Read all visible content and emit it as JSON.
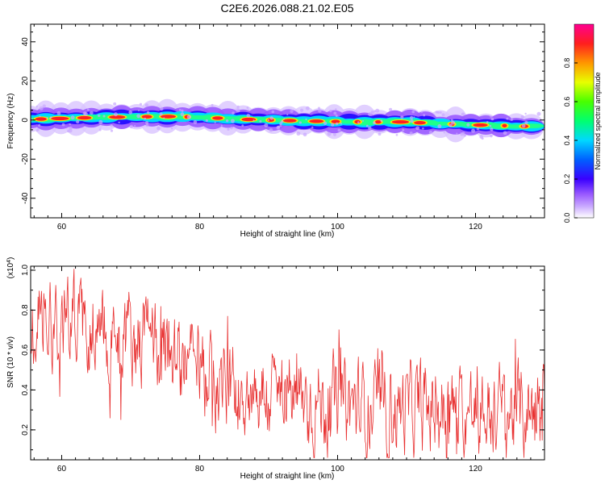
{
  "title": "C2E6.2026.088.21.02.E05",
  "chart_data": [
    {
      "type": "heatmap",
      "name": "spectrogram",
      "xlabel": "Height of straight line (km)",
      "ylabel": "Frequency (Hz)",
      "xlim": [
        55.5,
        130
      ],
      "ylim": [
        -50,
        49
      ],
      "xticks": [
        "60",
        "80",
        "100",
        "120"
      ],
      "yticks": [
        "40",
        "20",
        "0",
        "-20",
        "-40"
      ],
      "ridge": {
        "x": [
          57,
          62,
          68,
          75,
          80,
          85,
          90,
          95,
          100,
          105,
          110,
          115,
          120,
          125,
          130
        ],
        "freq_hz": [
          0.5,
          1.0,
          1.5,
          1.8,
          1.5,
          0.5,
          0.0,
          -0.5,
          -0.8,
          -1.0,
          -1.0,
          -2.0,
          -2.5,
          -3.0,
          -3.5
        ],
        "peak_amplitude": 1.0
      },
      "colorbar": {
        "label": "Normalized spectral amplitude",
        "range": [
          0,
          1
        ],
        "ticks": [
          "0.0",
          "0.2",
          "0.4",
          "0.6",
          "0.8"
        ]
      }
    },
    {
      "type": "line",
      "name": "snr",
      "xlabel": "Height of straight line (km)",
      "ylabel": "SNR (10 * v/v)",
      "yscale_label": "(x10",
      "yscale_exp": "4",
      "yscale_close": ")",
      "xlim": [
        55.5,
        130
      ],
      "ylim": [
        0.05,
        1.02
      ],
      "xticks": [
        "60",
        "80",
        "100",
        "120"
      ],
      "yticks": [
        "1.0",
        "0.8",
        "0.6",
        "0.4",
        "0.2"
      ],
      "series": [
        {
          "name": "SNR",
          "color": "#e83030",
          "trend_x": [
            55.5,
            58,
            62,
            66,
            70,
            74,
            78,
            82,
            86,
            90,
            94,
            98,
            102,
            106,
            110,
            114,
            118,
            122,
            126,
            130
          ],
          "trend_y": [
            0.72,
            0.78,
            0.76,
            0.7,
            0.67,
            0.63,
            0.54,
            0.44,
            0.41,
            0.38,
            0.36,
            0.33,
            0.32,
            0.31,
            0.3,
            0.3,
            0.29,
            0.29,
            0.29,
            0.31
          ],
          "noise_amplitude": 0.11
        }
      ]
    }
  ]
}
